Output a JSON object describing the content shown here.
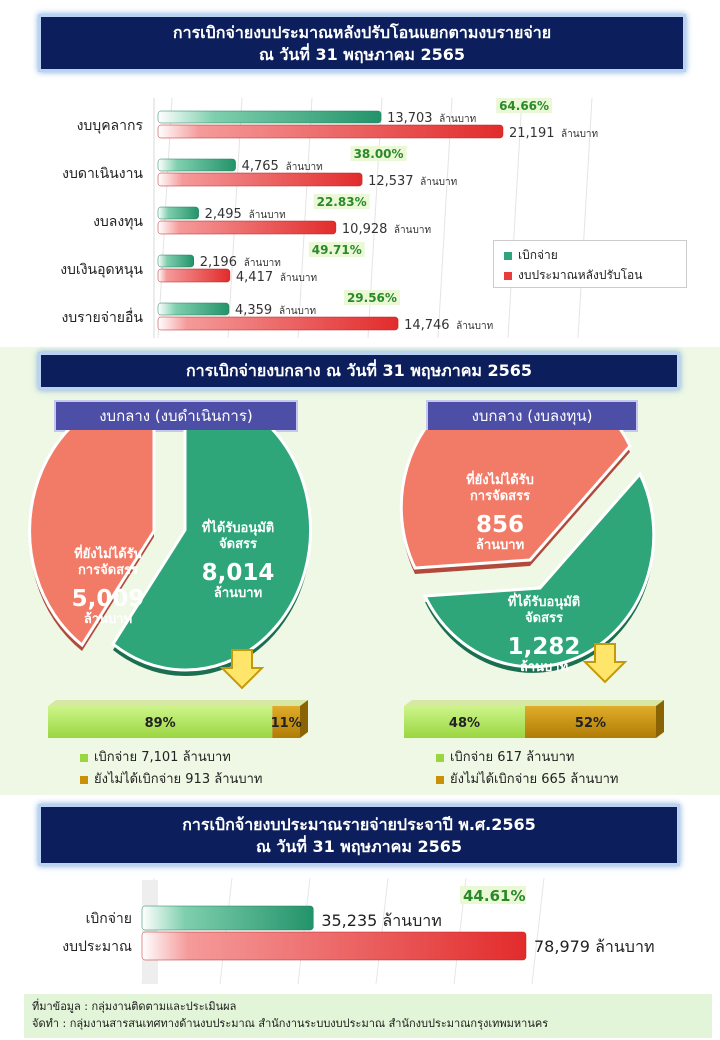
{
  "section1": {
    "title_line1": "การเบิกจ่ายงบประมาณหลังปรับโอนแยกตามงบรายจ่าย",
    "title_line2": "ณ วันที่ 31 พฤษภาคม 2565",
    "legend": {
      "spent": "เบิกจ่าย",
      "budget": "งบประมาณหลังปรับโอน"
    },
    "unit": "ล้านบาท",
    "colors": {
      "spent": "#2ea67a",
      "budget": "#e83c3c",
      "pct": "#2a8a2a"
    }
  },
  "section2": {
    "title": "การเบิกจ่ายงบกลาง ณ วันที่ 31 พฤษภาคม 2565",
    "left": {
      "header": "งบกลาง (งบดำเนินการ)",
      "approved_label1": "ที่ได้รับอนุมัติ",
      "approved_label2": "จัดสรร",
      "approved_value": "8,014",
      "pending_label1": "ที่ยังไม่ได้รับ",
      "pending_label2": "การจัดสรร",
      "pending_value": "5,009",
      "unit": "ล้านบาท",
      "bar_spent_pct": "89%",
      "bar_unspent_pct": "11%",
      "legend_spent": "เบิกจ่าย 7,101 ล้านบาท",
      "legend_unspent": "ยังไม่ได้เบิกจ่าย 913 ล้านบาท"
    },
    "right": {
      "header": "งบกลาง (งบลงทุน)",
      "approved_label1": "ที่ได้รับอนุมัติ",
      "approved_label2": "จัดสรร",
      "approved_value": "1,282",
      "pending_label1": "ที่ยังไม่ได้รับ",
      "pending_label2": "การจัดสรร",
      "pending_value": "856",
      "unit": "ล้านบาท",
      "bar_spent_pct": "48%",
      "bar_unspent_pct": "52%",
      "legend_spent": "เบิกจ่าย 617 ล้านบาท",
      "legend_unspent": "ยังไม่ได้เบิกจ่าย 665 ล้านบาท"
    }
  },
  "section3": {
    "title_line1": "การเบิกจ้ายงบประมาณรายจ่ายประจาปี พ.ศ.2565",
    "title_line2": "ณ วันที่ 31 พฤษภาคม 2565",
    "pct": "44.61%"
  },
  "footer": {
    "source": "ที่มาข้อมูล : กลุ่มงานติดตามและประเมินผล",
    "prepared": "จัดทำ : กลุ่มงานสารสนเทศทางด้านงบประมาณ สำนักงานระบบงบประมาณ สำนักงบประมาณกรุงเทพมหานคร"
  },
  "chart_data": [
    {
      "type": "bar",
      "orientation": "horizontal",
      "categories": [
        "งบบุคลากร",
        "งบดาเนินงาน",
        "งบลงทุน",
        "งบเงินอุดหนุน",
        "งบรายจ่ายอื่น"
      ],
      "series": [
        {
          "name": "เบิกจ่าย",
          "values": [
            13703,
            4765,
            2495,
            2196,
            4359
          ],
          "labels": [
            "13,703",
            "4,765",
            "2,495",
            "2,196",
            "4,359"
          ]
        },
        {
          "name": "งบประมาณหลังปรับโอน",
          "values": [
            21191,
            12537,
            10928,
            4417,
            14746
          ],
          "labels": [
            "21,191",
            "12,537",
            "10,928",
            "4,417",
            "14,746"
          ]
        }
      ],
      "percentages": [
        "64.66%",
        "38.00%",
        "22.83%",
        "49.71%",
        "29.56%"
      ],
      "xlim": [
        0,
        30000
      ],
      "legend": "right"
    },
    {
      "type": "pie",
      "labels": [
        "ที่ได้รับอนุมัติจัดสรร",
        "ที่ยังไม่ได้รับการจัดสรร"
      ],
      "values": [
        8014,
        5009
      ],
      "colors": [
        "#2ea67a",
        "#f27b68"
      ]
    },
    {
      "type": "bar",
      "orientation": "stacked-100",
      "categories": [
        "เบิกจ่าย",
        "ยังไม่ได้เบิกจ่าย"
      ],
      "values": [
        89,
        11
      ],
      "colors": [
        "#b0ea5c",
        "#c9900a"
      ]
    },
    {
      "type": "pie",
      "labels": [
        "ที่ได้รับอนุมัติจัดสรร",
        "ที่ยังไม่ได้รับการจัดสรร"
      ],
      "values": [
        1282,
        856
      ],
      "colors": [
        "#2ea67a",
        "#f27b68"
      ]
    },
    {
      "type": "bar",
      "orientation": "stacked-100",
      "categories": [
        "เบิกจ่าย",
        "ยังไม่ได้เบิกจ่าย"
      ],
      "values": [
        48,
        52
      ],
      "colors": [
        "#b0ea5c",
        "#c9900a"
      ]
    },
    {
      "type": "bar",
      "orientation": "horizontal",
      "categories": [
        "เบิกจ่าย",
        "งบประมาณ"
      ],
      "values": [
        35235,
        78979
      ],
      "labels": [
        "35,235 ล้านบาท",
        "78,979 ล้านบาท"
      ],
      "xlim": [
        0,
        80000
      ]
    }
  ]
}
